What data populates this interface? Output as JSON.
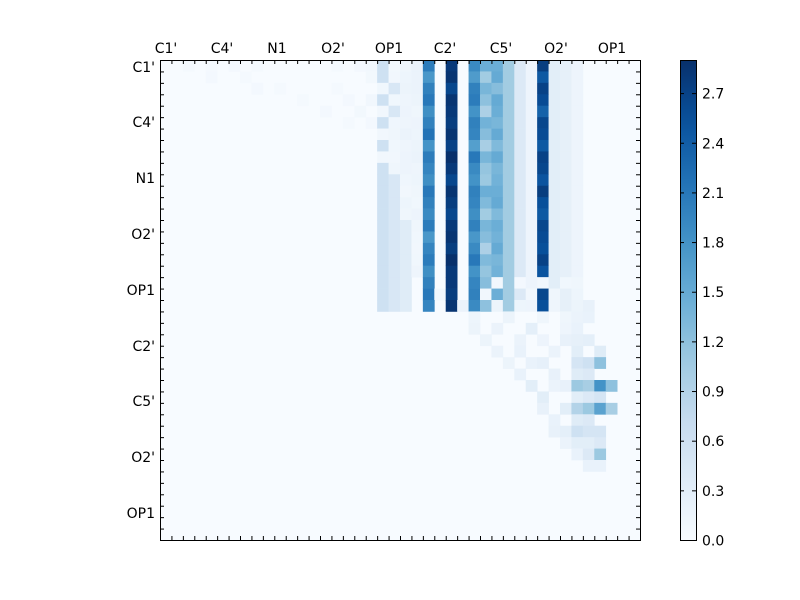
{
  "chart_data": {
    "type": "heatmap",
    "colormap": "Blues",
    "grid": false,
    "legend_placement": "right",
    "top_tick_labels": [
      "C1'",
      "C4'",
      "N1",
      "O2'",
      "OP1",
      "C2'",
      "C5'",
      "O2'",
      "OP1"
    ],
    "left_tick_labels": [
      "C1'",
      "C4'",
      "N1",
      "O2'",
      "OP1",
      "C2'",
      "C5'",
      "O2'",
      "OP1"
    ],
    "colorbar": {
      "min": 0.0,
      "max": 2.9,
      "ticks": [
        "0.0",
        "0.3",
        "0.6",
        "0.9",
        "1.2",
        "1.5",
        "1.8",
        "2.1",
        "2.4",
        "2.7"
      ]
    },
    "matrix_size": 42,
    "cells": [
      [
        0,
        2,
        0.05
      ],
      [
        0,
        4,
        0.05
      ],
      [
        0,
        6,
        0.06
      ],
      [
        0,
        8,
        0.04
      ],
      [
        1,
        4,
        0.06
      ],
      [
        1,
        7,
        0.05
      ],
      [
        2,
        8,
        0.06
      ],
      [
        2,
        10,
        0.05
      ],
      [
        3,
        12,
        0.05
      ],
      [
        4,
        14,
        0.06
      ],
      [
        5,
        16,
        0.05
      ],
      [
        0,
        15,
        0.04
      ],
      [
        0,
        17,
        0.06
      ],
      [
        0,
        18,
        0.08
      ],
      [
        0,
        20,
        0.07
      ],
      [
        0,
        21,
        0.12
      ],
      [
        0,
        22,
        0.18
      ],
      [
        1,
        18,
        0.07
      ],
      [
        1,
        20,
        0.09
      ],
      [
        1,
        21,
        0.14
      ],
      [
        1,
        22,
        0.17
      ],
      [
        2,
        15,
        0.05
      ],
      [
        2,
        19,
        0.1
      ],
      [
        2,
        21,
        0.16
      ],
      [
        2,
        22,
        0.18
      ],
      [
        3,
        16,
        0.06
      ],
      [
        3,
        18,
        0.08
      ],
      [
        3,
        20,
        0.1
      ],
      [
        3,
        21,
        0.13
      ],
      [
        3,
        22,
        0.16
      ],
      [
        4,
        17,
        0.07
      ],
      [
        4,
        19,
        0.09
      ],
      [
        4,
        21,
        0.15
      ],
      [
        4,
        22,
        0.12
      ],
      [
        5,
        18,
        0.06
      ],
      [
        5,
        20,
        0.11
      ],
      [
        5,
        21,
        0.13
      ],
      [
        5,
        22,
        0.15
      ],
      [
        6,
        19,
        0.09
      ],
      [
        6,
        20,
        0.12
      ],
      [
        6,
        21,
        0.17
      ],
      [
        6,
        22,
        0.14
      ],
      [
        7,
        20,
        0.1
      ],
      [
        7,
        21,
        0.13
      ],
      [
        7,
        22,
        0.16
      ],
      [
        8,
        19,
        0.08
      ],
      [
        8,
        20,
        0.09
      ],
      [
        8,
        21,
        0.15
      ],
      [
        8,
        22,
        0.18
      ],
      [
        9,
        20,
        0.12
      ],
      [
        9,
        21,
        0.15
      ],
      [
        9,
        22,
        0.13
      ],
      [
        10,
        21,
        0.11
      ],
      [
        10,
        22,
        0.14
      ],
      [
        11,
        21,
        0.09
      ],
      [
        11,
        22,
        0.12
      ],
      [
        12,
        21,
        0.14
      ],
      [
        12,
        22,
        0.1
      ],
      [
        13,
        21,
        0.12
      ],
      [
        13,
        22,
        0.15
      ],
      [
        14,
        22,
        0.12
      ],
      [
        15,
        22,
        0.1
      ],
      [
        16,
        22,
        0.08
      ],
      [
        17,
        22,
        0.1
      ],
      [
        18,
        22,
        0.13
      ],
      [
        19,
        29,
        0.08
      ],
      [
        19,
        31,
        0.06
      ],
      [
        19,
        33,
        0.08
      ],
      [
        19,
        35,
        0.1
      ],
      [
        19,
        36,
        0.12
      ],
      [
        20,
        24,
        0.1
      ],
      [
        20,
        28,
        0.09
      ],
      [
        20,
        32,
        0.09
      ],
      [
        20,
        34,
        0.12
      ],
      [
        20,
        36,
        0.14
      ],
      [
        21,
        26,
        0.18
      ],
      [
        21,
        29,
        0.16
      ],
      [
        21,
        31,
        0.14
      ],
      [
        21,
        34,
        0.13
      ],
      [
        21,
        36,
        0.16
      ],
      [
        21,
        37,
        0.22
      ],
      [
        22,
        27,
        0.14
      ],
      [
        22,
        30,
        0.16
      ],
      [
        22,
        33,
        0.12
      ],
      [
        22,
        35,
        0.12
      ],
      [
        22,
        36,
        0.18
      ],
      [
        22,
        37,
        0.2
      ],
      [
        23,
        27,
        0.16
      ],
      [
        23,
        29,
        0.18
      ],
      [
        23,
        32,
        0.28
      ],
      [
        23,
        35,
        0.13
      ],
      [
        23,
        36,
        0.2
      ],
      [
        24,
        28,
        0.16
      ],
      [
        24,
        31,
        0.18
      ],
      [
        24,
        33,
        0.15
      ],
      [
        24,
        35,
        0.22
      ],
      [
        24,
        36,
        0.25
      ],
      [
        24,
        37,
        0.28
      ],
      [
        25,
        29,
        0.18
      ],
      [
        25,
        31,
        0.2
      ],
      [
        25,
        34,
        0.18
      ],
      [
        25,
        36,
        0.3
      ],
      [
        25,
        38,
        0.35
      ],
      [
        26,
        30,
        0.16
      ],
      [
        26,
        32,
        0.2
      ],
      [
        26,
        33,
        0.24
      ],
      [
        26,
        36,
        0.5
      ],
      [
        26,
        37,
        0.6
      ],
      [
        26,
        38,
        1.2
      ],
      [
        27,
        31,
        0.2
      ],
      [
        27,
        34,
        0.22
      ],
      [
        27,
        36,
        0.35
      ],
      [
        27,
        37,
        0.4
      ],
      [
        28,
        32,
        0.3
      ],
      [
        28,
        34,
        0.18
      ],
      [
        28,
        35,
        0.22
      ],
      [
        28,
        36,
        1.1
      ],
      [
        28,
        37,
        1.0
      ],
      [
        28,
        38,
        1.8
      ],
      [
        28,
        39,
        1.2
      ],
      [
        29,
        33,
        0.3
      ],
      [
        29,
        36,
        0.3
      ],
      [
        29,
        37,
        0.4
      ],
      [
        29,
        38,
        0.5
      ],
      [
        30,
        33,
        0.22
      ],
      [
        30,
        35,
        0.3
      ],
      [
        30,
        36,
        0.9
      ],
      [
        30,
        37,
        1.1
      ],
      [
        30,
        38,
        1.6
      ],
      [
        30,
        39,
        1.0
      ],
      [
        31,
        34,
        0.2
      ],
      [
        31,
        36,
        0.35
      ],
      [
        31,
        37,
        0.4
      ],
      [
        32,
        34,
        0.22
      ],
      [
        32,
        35,
        0.28
      ],
      [
        32,
        36,
        0.6
      ],
      [
        32,
        37,
        0.5
      ],
      [
        32,
        38,
        0.5
      ],
      [
        33,
        35,
        0.18
      ],
      [
        33,
        36,
        0.3
      ],
      [
        33,
        37,
        0.3
      ],
      [
        33,
        38,
        0.4
      ],
      [
        34,
        36,
        0.2
      ],
      [
        34,
        37,
        0.4
      ],
      [
        34,
        38,
        1.1
      ],
      [
        35,
        37,
        0.2
      ],
      [
        35,
        38,
        0.2
      ]
    ],
    "rects": [
      [
        0,
        19,
        22,
        20,
        0.6
      ],
      [
        0,
        20,
        22,
        21,
        0.45
      ],
      [
        0,
        21,
        22,
        22,
        0.35
      ],
      [
        0,
        23,
        22,
        24,
        1.95
      ],
      [
        0,
        25,
        22,
        26,
        2.75
      ],
      [
        0,
        27,
        22,
        28,
        1.9
      ],
      [
        0,
        28,
        22,
        29,
        1.15
      ],
      [
        0,
        29,
        22,
        30,
        1.4
      ],
      [
        0,
        30,
        22,
        31,
        1.05
      ],
      [
        0,
        31,
        22,
        32,
        0.4
      ],
      [
        0,
        32,
        22,
        33,
        0.15
      ],
      [
        0,
        33,
        22,
        34,
        2.55
      ],
      [
        0,
        34,
        22,
        35,
        0.3
      ],
      [
        0,
        35,
        22,
        36,
        0.25
      ],
      [
        0,
        36,
        22,
        37,
        0.15
      ]
    ],
    "column_variation": [
      [
        23,
        [
          0.1,
          -0.2,
          0.05,
          0.15,
          -0.1,
          0.05,
          0.2,
          -0.15,
          0.1,
          0.0,
          -0.1,
          0.15,
          0.05,
          -0.05,
          0.1,
          -0.2,
          0.0,
          0.1,
          -0.1,
          0.05,
          0.15,
          0.0
        ]
      ],
      [
        25,
        [
          0.05,
          0.1,
          -0.1,
          0.1,
          0.05,
          0.0,
          0.1,
          -0.05,
          0.15,
          0.05,
          -0.1,
          0.1,
          0.0,
          -0.1,
          0.05,
          0.1,
          0.0,
          0.15,
          0.05,
          0.05,
          0.0,
          0.1
        ]
      ],
      [
        27,
        [
          0.0,
          -0.2,
          0.1,
          0.15,
          -0.1,
          0.1,
          0.05,
          -0.25,
          0.2,
          0.0,
          -0.1,
          0.1,
          0.05,
          -0.05,
          0.1,
          -0.15,
          0.0,
          0.2,
          -0.1,
          0.05,
          0.1,
          0.0
        ]
      ],
      [
        28,
        [
          0.3,
          -0.1,
          0.2,
          0.05,
          -0.2,
          0.25,
          0.1,
          -0.15,
          0.2,
          0.0,
          -0.05,
          0.3,
          0.15,
          -0.1,
          0.2,
          0.1,
          -0.2,
          0.15,
          0.0,
          0.1,
          0.25,
          0.05
        ]
      ],
      [
        29,
        [
          0.05,
          0.1,
          -0.15,
          0.1,
          0.05,
          -0.05,
          0.1,
          -0.1,
          0.1,
          -0.05,
          0.0,
          0.05,
          0.1,
          -0.1,
          0.05,
          0.0,
          0.1,
          -0.05,
          0.0,
          0.1,
          0.05,
          0.0
        ]
      ],
      [
        33,
        [
          0.2,
          -0.1,
          0.15,
          0.05,
          -0.2,
          0.1,
          0.05,
          -0.1,
          0.15,
          0.1,
          -0.05,
          0.2,
          0.0,
          -0.1,
          0.1,
          0.05,
          0.0,
          0.15,
          -0.05,
          0.05,
          0.1,
          0.0
        ]
      ]
    ]
  }
}
